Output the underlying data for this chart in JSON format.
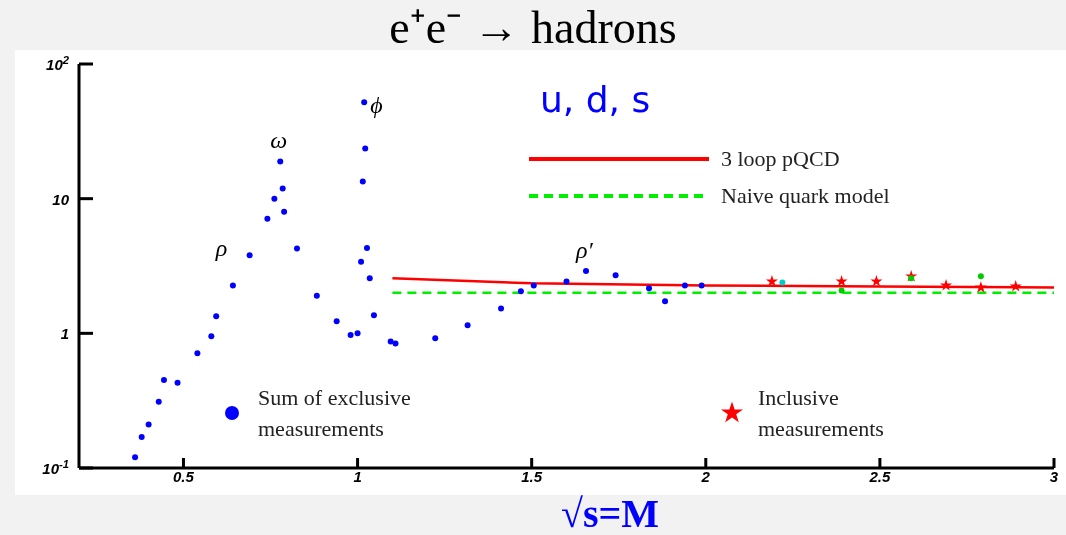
{
  "chart_data": {
    "type": "scatter",
    "title": "e⁺e⁻ → hadrons",
    "xlabel": "√s=M",
    "xlim": [
      0.2,
      3
    ],
    "xticks": [
      0.5,
      1,
      1.5,
      2,
      2.5,
      3
    ],
    "ylim": [
      0.1,
      100
    ],
    "yticks": [
      {
        "value": 0.1,
        "label": "10$^{-1}$"
      },
      1,
      10,
      {
        "value": 100,
        "label": "10$^{2}$"
      }
    ],
    "log": "y",
    "grid": false,
    "legend": "bottom",
    "annotations": [
      "u, d, s",
      {
        "text": "ρ",
        "x": 0.69,
        "y": 3.8
      },
      {
        "text": "ω",
        "x": 0.778,
        "y": 18.9
      },
      {
        "text": "ϕ",
        "x": 1.019,
        "y": 52
      },
      {
        "text": "ρ′",
        "x": 1.656,
        "y": 2.9
      }
    ],
    "series": [
      {
        "name": "Sum of exclusive measurements",
        "marker": "circle",
        "color": "#0000ff",
        "x": [
          0.361,
          0.38,
          0.4,
          0.429,
          0.444,
          0.483,
          0.54,
          0.58,
          0.594,
          0.642,
          0.69,
          0.741,
          0.761,
          0.778,
          0.785,
          0.789,
          0.826,
          0.883,
          0.94,
          0.98,
          1.0,
          1.01,
          1.015,
          1.019,
          1.022,
          1.027,
          1.035,
          1.047,
          1.095,
          1.109,
          1.223,
          1.316,
          1.412,
          1.469,
          1.506,
          1.6,
          1.656,
          1.741,
          1.837,
          1.883,
          1.94,
          1.988
        ],
        "values": [
          0.12,
          0.17,
          0.21,
          0.31,
          0.45,
          0.43,
          0.71,
          0.95,
          1.34,
          2.27,
          3.8,
          7.1,
          10,
          18.9,
          11.9,
          8.0,
          4.27,
          1.9,
          1.23,
          0.97,
          1.0,
          3.4,
          13.4,
          52,
          23.6,
          4.3,
          2.56,
          1.36,
          0.87,
          0.84,
          0.92,
          1.15,
          1.53,
          2.05,
          2.27,
          2.43,
          2.9,
          2.7,
          2.16,
          1.73,
          2.27,
          2.27
        ]
      },
      {
        "name": "Inclusive measurements",
        "marker": "star",
        "color": "#ff0000",
        "x": [
          2.19,
          2.39,
          2.49,
          2.59,
          2.69,
          2.79,
          2.89
        ],
        "values": [
          2.43,
          2.43,
          2.43,
          2.65,
          2.27,
          2.19,
          2.23
        ]
      },
      {
        "marker": "circle",
        "color": "#00cccc",
        "x": [
          2.22
        ],
        "values": [
          2.39
        ]
      },
      {
        "marker": "circle",
        "color": "#00cc00",
        "x": [
          2.39,
          2.59,
          2.79
        ],
        "values": [
          2.08,
          2.56,
          2.65
        ]
      },
      {
        "name": "3 loop pQCD",
        "type": "line",
        "line_style": "solid",
        "color": "#ff0000",
        "x": [
          1.1,
          1.5,
          2,
          2.5,
          3
        ],
        "values": [
          2.56,
          2.35,
          2.27,
          2.23,
          2.19
        ]
      },
      {
        "name": "Naive quark model",
        "type": "line",
        "line_style": "dashed",
        "color": "#00ee00",
        "x": [
          1.1,
          3
        ],
        "values": [
          2,
          2
        ]
      }
    ]
  }
}
